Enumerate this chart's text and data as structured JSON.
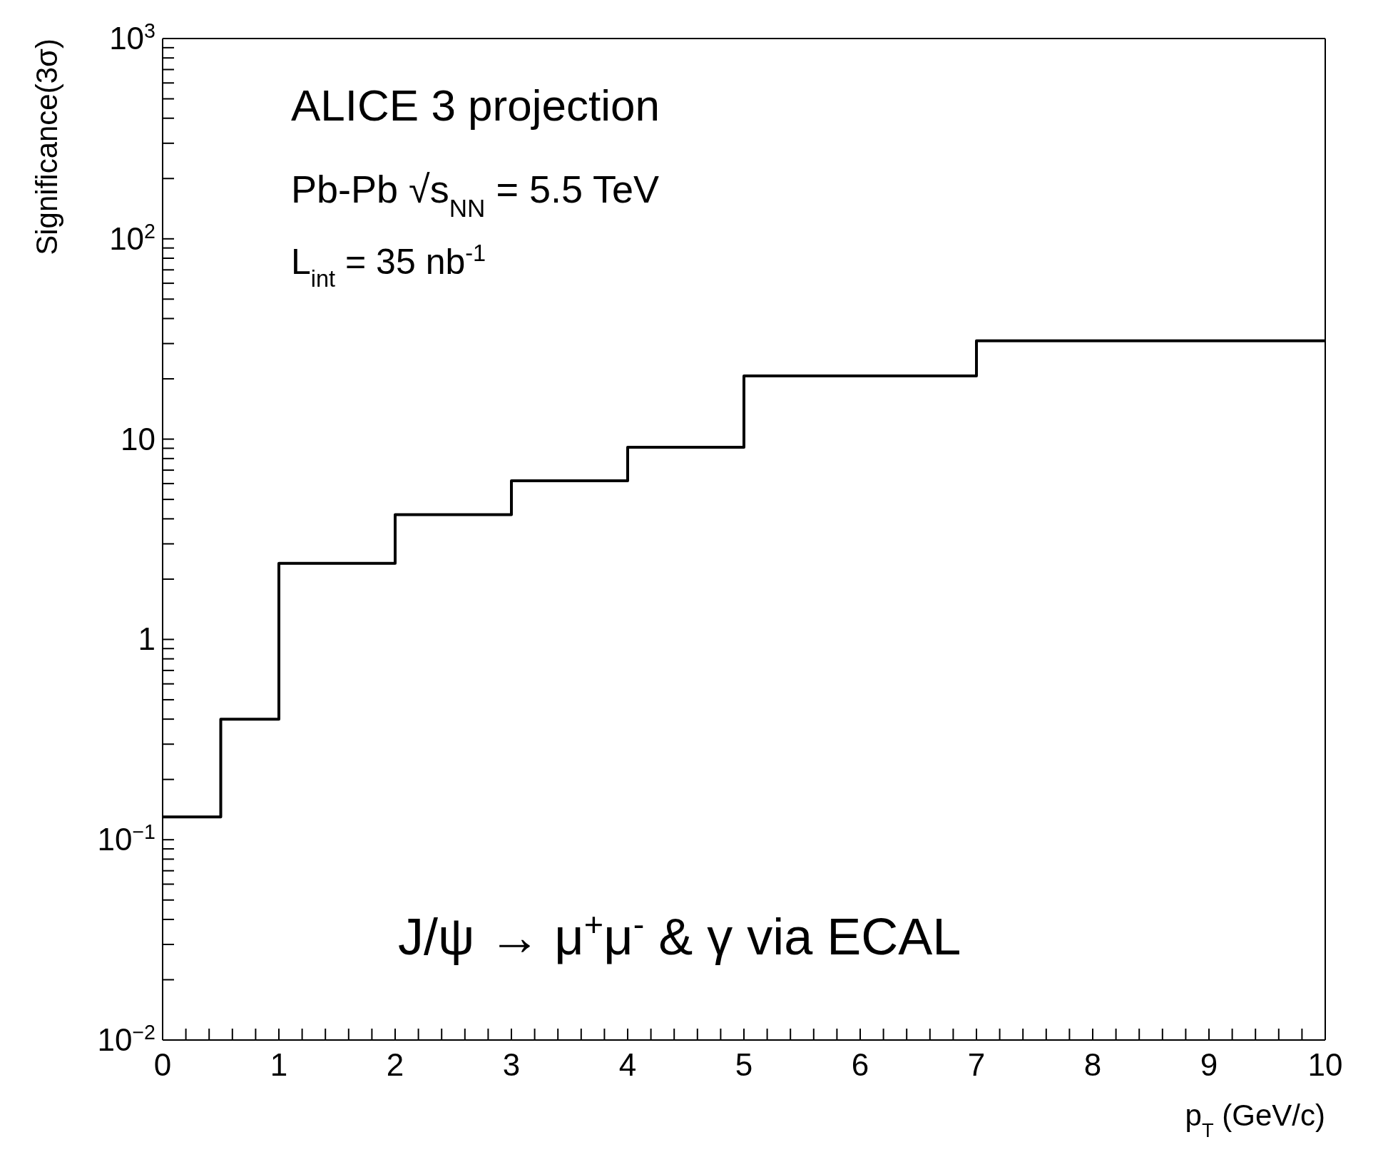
{
  "chart_data": {
    "type": "step",
    "xlabel": "p$_{T}$ (GeV/c)",
    "ylabel": "Significance(3σ)",
    "annotations": [
      "ALICE 3 projection",
      "Pb-Pb √s$_{NN}$ = 5.5 TeV",
      "L$_{int}$ = 35 nb$^{-1}$",
      "J/ψ → μ$^{+}$μ$^{-}$ & γ via ECAL"
    ],
    "x": [
      0,
      0.5,
      1,
      2,
      3,
      4,
      5,
      7,
      10
    ],
    "values": [
      0.13,
      0.4,
      2.4,
      4.2,
      6.2,
      9.1,
      20.7,
      31,
      31
    ],
    "color": "#000000",
    "log": "y",
    "grid": false,
    "legend": false,
    "xlim": [
      0,
      10
    ],
    "xticks": [
      0,
      {
        "value": 0.2,
        "label": null
      },
      {
        "value": 0.4,
        "label": null
      },
      {
        "value": 0.6,
        "label": null
      },
      {
        "value": 0.8,
        "label": null
      },
      1,
      {
        "value": 1.2,
        "label": null
      },
      {
        "value": 1.4,
        "label": null
      },
      {
        "value": 1.6,
        "label": null
      },
      {
        "value": 1.8,
        "label": null
      },
      2,
      {
        "value": 2.2,
        "label": null
      },
      {
        "value": 2.4,
        "label": null
      },
      {
        "value": 2.6,
        "label": null
      },
      {
        "value": 2.8,
        "label": null
      },
      3,
      {
        "value": 3.2,
        "label": null
      },
      {
        "value": 3.4,
        "label": null
      },
      {
        "value": 3.6,
        "label": null
      },
      {
        "value": 3.8,
        "label": null
      },
      4,
      {
        "value": 4.2,
        "label": null
      },
      {
        "value": 4.4,
        "label": null
      },
      {
        "value": 4.6,
        "label": null
      },
      {
        "value": 4.8,
        "label": null
      },
      5,
      {
        "value": 5.2,
        "label": null
      },
      {
        "value": 5.4,
        "label": null
      },
      {
        "value": 5.6,
        "label": null
      },
      {
        "value": 5.8,
        "label": null
      },
      6,
      {
        "value": 6.2,
        "label": null
      },
      {
        "value": 6.4,
        "label": null
      },
      {
        "value": 6.6,
        "label": null
      },
      {
        "value": 6.8,
        "label": null
      },
      7,
      {
        "value": 7.2,
        "label": null
      },
      {
        "value": 7.4,
        "label": null
      },
      {
        "value": 7.6,
        "label": null
      },
      {
        "value": 7.8,
        "label": null
      },
      8,
      {
        "value": 8.2,
        "label": null
      },
      {
        "value": 8.4,
        "label": null
      },
      {
        "value": 8.6,
        "label": null
      },
      {
        "value": 8.8,
        "label": null
      },
      9,
      {
        "value": 9.2,
        "label": null
      },
      {
        "value": 9.4,
        "label": null
      },
      {
        "value": 9.6,
        "label": null
      },
      {
        "value": 9.8,
        "label": null
      },
      10
    ],
    "ylim": [
      0.01,
      1000
    ],
    "yticks": [
      {
        "value": 0.01,
        "label": "10$^{−2}$"
      },
      {
        "value": 0.02,
        "label": null
      },
      {
        "value": 0.03,
        "label": null
      },
      {
        "value": 0.04,
        "label": null
      },
      {
        "value": 0.05,
        "label": null
      },
      {
        "value": 0.06,
        "label": null
      },
      {
        "value": 0.07,
        "label": null
      },
      {
        "value": 0.08,
        "label": null
      },
      {
        "value": 0.09,
        "label": null
      },
      {
        "value": 0.1,
        "label": "10$^{−1}$"
      },
      {
        "value": 0.2,
        "label": null
      },
      {
        "value": 0.3,
        "label": null
      },
      {
        "value": 0.4,
        "label": null
      },
      {
        "value": 0.5,
        "label": null
      },
      {
        "value": 0.6,
        "label": null
      },
      {
        "value": 0.7,
        "label": null
      },
      {
        "value": 0.8,
        "label": null
      },
      {
        "value": 0.9,
        "label": null
      },
      1,
      {
        "value": 2,
        "label": null
      },
      {
        "value": 3,
        "label": null
      },
      {
        "value": 4,
        "label": null
      },
      {
        "value": 5,
        "label": null
      },
      {
        "value": 6,
        "label": null
      },
      {
        "value": 7,
        "label": null
      },
      {
        "value": 8,
        "label": null
      },
      {
        "value": 9,
        "label": null
      },
      10,
      {
        "value": 20,
        "label": null
      },
      {
        "value": 30,
        "label": null
      },
      {
        "value": 40,
        "label": null
      },
      {
        "value": 50,
        "label": null
      },
      {
        "value": 60,
        "label": null
      },
      {
        "value": 70,
        "label": null
      },
      {
        "value": 80,
        "label": null
      },
      {
        "value": 90,
        "label": null
      },
      {
        "value": 100,
        "label": "10$^{2}$"
      },
      {
        "value": 200,
        "label": null
      },
      {
        "value": 300,
        "label": null
      },
      {
        "value": 400,
        "label": null
      },
      {
        "value": 500,
        "label": null
      },
      {
        "value": 600,
        "label": null
      },
      {
        "value": 700,
        "label": null
      },
      {
        "value": 800,
        "label": null
      },
      {
        "value": 900,
        "label": null
      },
      {
        "value": 1000,
        "label": "10$^{3}$"
      }
    ]
  }
}
